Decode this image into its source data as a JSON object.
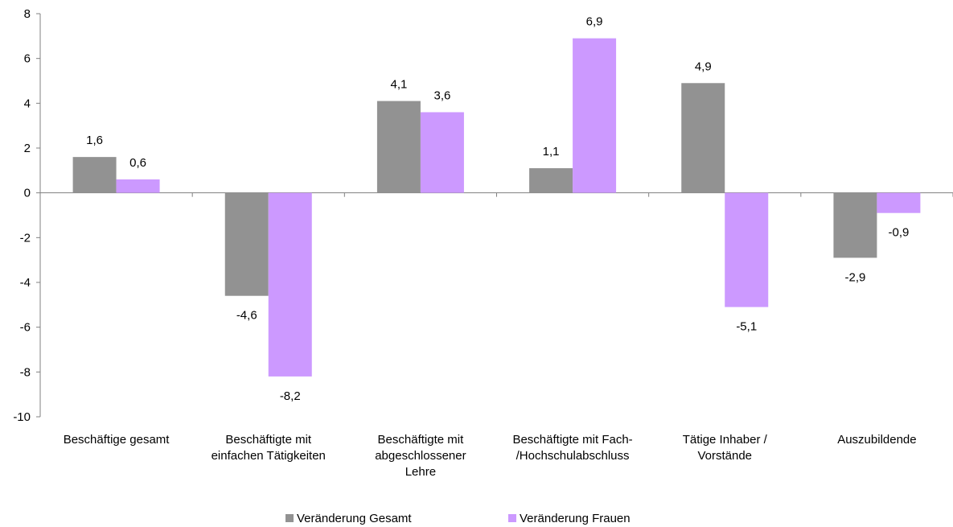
{
  "chart_data": {
    "type": "bar",
    "title": "",
    "xlabel": "",
    "ylabel": "",
    "ylim": [
      -10,
      8
    ],
    "yticks": [
      8,
      6,
      4,
      2,
      0,
      -2,
      -4,
      -6,
      -8,
      -10
    ],
    "grid": false,
    "legend_position": "bottom",
    "categories": [
      [
        "Beschäftige gesamt"
      ],
      [
        "Beschäftigte mit",
        "einfachen Tätigkeiten"
      ],
      [
        "Beschäftigte mit",
        "abgeschlossener",
        "Lehre"
      ],
      [
        "Beschäftigte mit Fach-",
        "/Hochschulabschluss"
      ],
      [
        "Tätige Inhaber /",
        "Vorstände"
      ],
      [
        "Auszubildende"
      ]
    ],
    "series": [
      {
        "name": "Veränderung Gesamt",
        "color": "#929292",
        "values": [
          1.6,
          -4.6,
          4.1,
          1.1,
          4.9,
          -2.9
        ],
        "labels": [
          "1,6",
          "-4,6",
          "4,1",
          "1,1",
          "4,9",
          "-2,9"
        ]
      },
      {
        "name": "Veränderung Frauen",
        "color": "#cc99ff",
        "values": [
          0.6,
          -8.2,
          3.6,
          6.9,
          -5.1,
          -0.9
        ],
        "labels": [
          "0,6",
          "-8,2",
          "3,6",
          "6,9",
          "-5,1",
          "-0,9"
        ]
      }
    ]
  }
}
